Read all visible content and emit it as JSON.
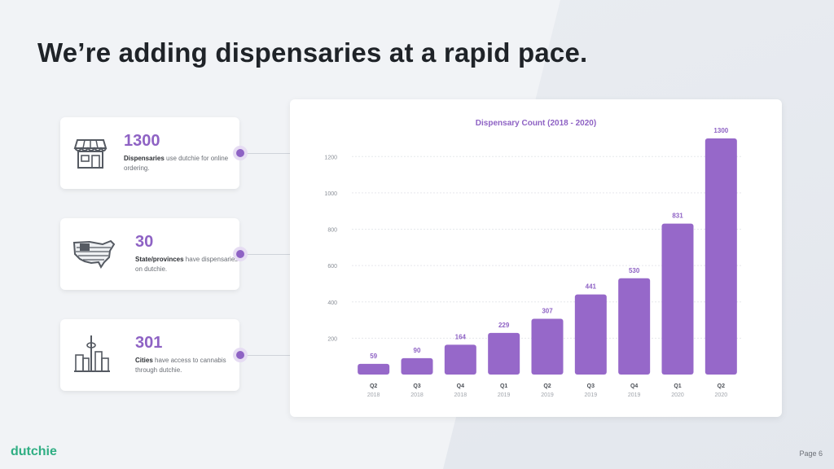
{
  "page": {
    "title": "We’re adding dispensaries at a rapid pace.",
    "logo": "dutchie",
    "page_number": "Page 6"
  },
  "stats": [
    {
      "value": "1300",
      "bold": "Dispensaries",
      "text": " use dutchie for online ordering.",
      "icon": "storefront-icon"
    },
    {
      "value": "30",
      "bold": "State/provinces",
      "text": " have dispensaries on dutchie.",
      "icon": "usa-map-icon"
    },
    {
      "value": "301",
      "bold": "Cities",
      "text": " have access to cannabis through dutchie.",
      "icon": "city-skyline-icon"
    }
  ],
  "colors": {
    "accent": "#8e62c4",
    "brand": "#2fae83"
  },
  "chart_data": {
    "type": "bar",
    "title": "Dispensary Count (2018 - 2020)",
    "categories": [
      "Q2",
      "Q3",
      "Q4",
      "Q1",
      "Q2",
      "Q3",
      "Q4",
      "Q1",
      "Q2"
    ],
    "years": [
      "2018",
      "2018",
      "2018",
      "2019",
      "2019",
      "2019",
      "2019",
      "2020",
      "2020"
    ],
    "values": [
      59,
      90,
      164,
      229,
      307,
      441,
      530,
      831,
      1300
    ],
    "yticks": [
      200,
      400,
      600,
      800,
      1000,
      1200
    ],
    "ylim": [
      0,
      1300
    ],
    "grid": true,
    "color": "#9668c9"
  }
}
